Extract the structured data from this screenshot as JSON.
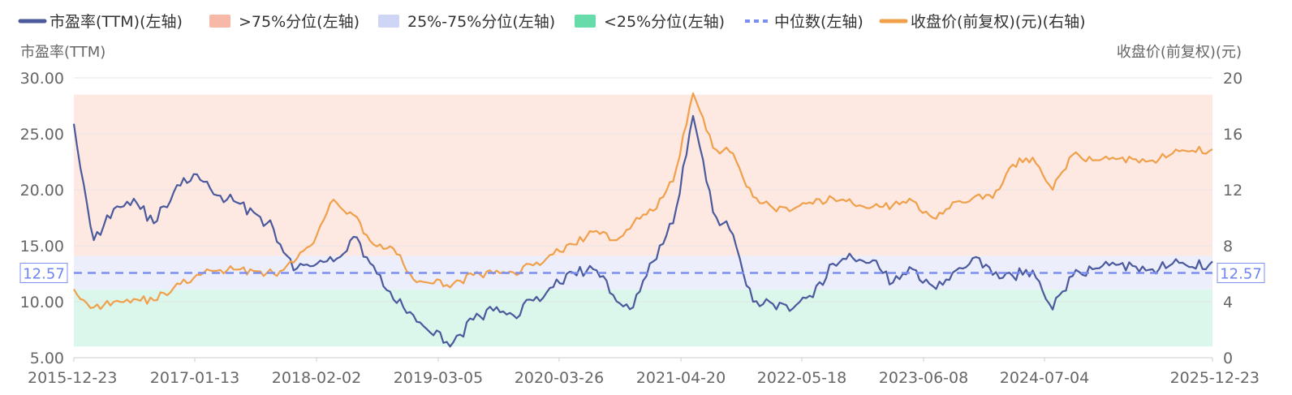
{
  "legend": [
    {
      "label": "市盈率(TTM)(左轴)",
      "color": "#4a5a9c",
      "kind": "line"
    },
    {
      "label": ">75%分位(左轴)",
      "color": "#f7b8a8",
      "kind": "box"
    },
    {
      "label": "25%-75%分位(左轴)",
      "color": "#cfd6f5",
      "kind": "box"
    },
    {
      "label": "<25%分位(左轴)",
      "color": "#67dcaa",
      "kind": "box"
    },
    {
      "label": "中位数(左轴)",
      "color": "#7b8ff2",
      "kind": "dash"
    },
    {
      "label": "收盘价(前复权)(元)(右轴)",
      "color": "#f0a04a",
      "kind": "line"
    }
  ],
  "chart_data": {
    "type": "line",
    "ylabel_left": "市盈率(TTM)",
    "ylabel_right": "收盘价(前复权)(元)",
    "y_left_ticks": [
      "30.00",
      "25.00",
      "20.00",
      "15.00",
      "10.00",
      "5.00"
    ],
    "y_right_ticks": [
      "20",
      "16",
      "12",
      "8",
      "4",
      "0"
    ],
    "ylim_left": [
      5,
      30
    ],
    "ylim_right": [
      0,
      20
    ],
    "x_tick_labels": [
      "2015-12-23",
      "2017-01-13",
      "2018-02-02",
      "2019-03-05",
      "2020-03-26",
      "2021-04-20",
      "2022-05-18",
      "2023-06-08",
      "2024-07-04",
      "2025-12-23"
    ],
    "median": 12.57,
    "median_label": "12.57",
    "bands": {
      "upper_75": 28.5,
      "p75": 14.1,
      "p25": 11.1,
      "lower_25": 6.0
    },
    "x": [
      "2015-12-23",
      "2016-02",
      "2016-04",
      "2016-06",
      "2016-08",
      "2016-10",
      "2016-12",
      "2017-01-13",
      "2017-03",
      "2017-05",
      "2017-07",
      "2017-09",
      "2017-11",
      "2018-02-02",
      "2018-04",
      "2018-06",
      "2018-08",
      "2018-10",
      "2018-12",
      "2019-03-05",
      "2019-05",
      "2019-07",
      "2019-09",
      "2019-11",
      "2020-01",
      "2020-03-26",
      "2020-05",
      "2020-07",
      "2020-09",
      "2020-11",
      "2021-01",
      "2021-04-20",
      "2021-06",
      "2021-08",
      "2021-10",
      "2021-12",
      "2022-03",
      "2022-05-18",
      "2022-07",
      "2022-09",
      "2022-11",
      "2023-01",
      "2023-03",
      "2023-06-08",
      "2023-08",
      "2023-10",
      "2023-12",
      "2024-02",
      "2024-04",
      "2024-07-04",
      "2024-09",
      "2024-11",
      "2025-02",
      "2025-04",
      "2025-06",
      "2025-08",
      "2025-10",
      "2025-12-23"
    ],
    "series": [
      {
        "name": "市盈率(TTM)(左轴)",
        "axis": "left",
        "color": "#4a5a9c",
        "values": [
          25.9,
          15.5,
          18.3,
          19.2,
          17.0,
          19.8,
          21.4,
          19.6,
          19.0,
          18.0,
          16.5,
          12.8,
          13.2,
          13.6,
          15.8,
          13.2,
          10.2,
          8.8,
          7.0,
          6.4,
          8.4,
          9.2,
          8.8,
          10.1,
          11.3,
          12.6,
          12.9,
          10.6,
          9.5,
          13.6,
          17.0,
          26.6,
          18.0,
          16.0,
          10.0,
          9.8,
          9.4,
          10.4,
          13.4,
          13.9,
          13.7,
          11.7,
          12.9,
          11.4,
          12.6,
          13.9,
          12.4,
          12.3,
          12.8,
          9.3,
          12.3,
          12.9,
          13.5,
          13.2,
          12.9,
          13.4,
          13.1,
          13.6
        ]
      },
      {
        "name": "收盘价(前复权)(元)(右轴)",
        "axis": "right",
        "color": "#f0a04a",
        "values": [
          4.9,
          3.6,
          4.0,
          4.2,
          4.1,
          5.0,
          5.7,
          6.2,
          6.3,
          6.2,
          6.0,
          6.8,
          8.2,
          11.3,
          10.2,
          8.1,
          7.8,
          5.6,
          5.3,
          5.3,
          5.9,
          6.0,
          6.1,
          6.6,
          7.4,
          8.1,
          9.0,
          8.4,
          9.6,
          10.5,
          12.6,
          18.9,
          15.0,
          14.6,
          11.5,
          10.7,
          10.6,
          11.0,
          11.4,
          11.0,
          10.8,
          10.9,
          11.2,
          10.0,
          11.1,
          11.4,
          11.4,
          13.8,
          14.3,
          12.0,
          14.5,
          14.1,
          14.3,
          14.2,
          14.1,
          14.6,
          14.8,
          14.9
        ]
      }
    ]
  }
}
